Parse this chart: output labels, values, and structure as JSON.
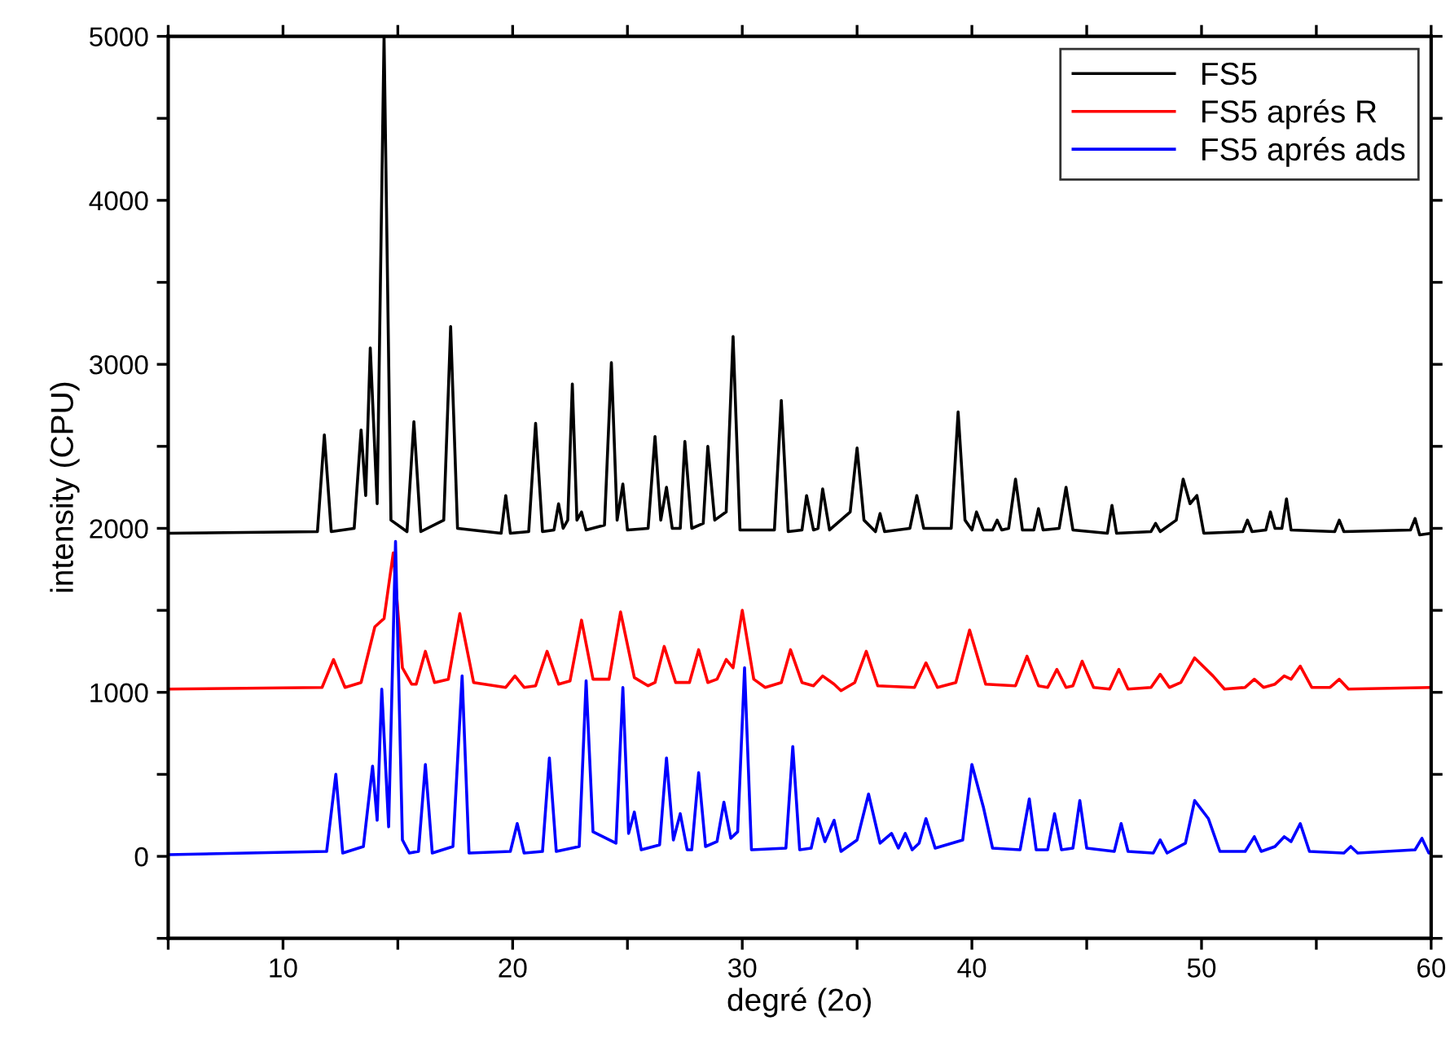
{
  "chart_data": {
    "type": "line",
    "xlabel": "degré (2o)",
    "ylabel": "intensity (CPU)",
    "xlim": [
      5,
      60
    ],
    "ylim": [
      -500,
      5000
    ],
    "xticks": [
      {
        "value": 5,
        "label": null
      },
      10,
      {
        "value": 15,
        "label": null
      },
      20,
      {
        "value": 25,
        "label": null
      },
      30,
      {
        "value": 35,
        "label": null
      },
      40,
      {
        "value": 45,
        "label": null
      },
      50,
      {
        "value": 55,
        "label": null
      },
      60
    ],
    "yticks": [
      {
        "value": -500,
        "label": null
      },
      0,
      {
        "value": 500,
        "label": null
      },
      1000,
      {
        "value": 1500,
        "label": null
      },
      2000,
      {
        "value": 2500,
        "label": null
      },
      3000,
      {
        "value": 3500,
        "label": null
      },
      4000,
      {
        "value": 4500,
        "label": null
      },
      5000
    ],
    "grid": false,
    "legend": "top right",
    "marker": "none",
    "line_style": "solid",
    "series": [
      {
        "name": "FS5",
        "color": "#000000",
        "x": [
          5,
          11.5,
          11.8,
          12.1,
          13.1,
          13.4,
          13.6,
          13.8,
          14.1,
          14.4,
          14.7,
          15.4,
          15.7,
          16.0,
          17.0,
          17.3,
          17.6,
          19.5,
          19.7,
          19.9,
          20.7,
          21.0,
          21.3,
          21.8,
          22.0,
          22.2,
          22.4,
          22.6,
          22.8,
          23.0,
          23.2,
          24.0,
          24.3,
          24.55,
          24.8,
          25.0,
          25.9,
          26.2,
          26.45,
          26.7,
          26.95,
          27.3,
          27.5,
          27.8,
          28.3,
          28.5,
          28.8,
          29.3,
          29.6,
          29.9,
          31.4,
          31.7,
          32.0,
          32.6,
          32.8,
          33.1,
          33.3,
          33.5,
          33.8,
          34.7,
          35.0,
          35.3,
          35.8,
          36.0,
          36.2,
          37.3,
          37.6,
          37.9,
          39.1,
          39.4,
          39.7,
          40.0,
          40.2,
          40.5,
          40.9,
          41.1,
          41.3,
          41.6,
          41.9,
          42.2,
          42.7,
          42.9,
          43.1,
          43.8,
          44.1,
          44.4,
          45.9,
          46.1,
          46.3,
          47.8,
          48.0,
          48.2,
          48.9,
          49.2,
          49.5,
          49.8,
          50.1,
          51.8,
          52.0,
          52.2,
          52.8,
          53.0,
          53.2,
          53.5,
          53.7,
          53.9,
          55.8,
          56.0,
          56.2,
          59.1,
          59.3,
          59.5,
          60
        ],
        "values": [
          1970,
          1980,
          2570,
          1980,
          2000,
          2600,
          2200,
          3100,
          2150,
          5000,
          2050,
          1980,
          2650,
          1980,
          2050,
          3230,
          2000,
          1970,
          2200,
          1970,
          1980,
          2640,
          1980,
          1990,
          2150,
          2000,
          2050,
          2880,
          2050,
          2100,
          1990,
          2020,
          3010,
          2050,
          2270,
          1990,
          2000,
          2560,
          2050,
          2250,
          2000,
          2000,
          2530,
          2000,
          2030,
          2500,
          2050,
          2100,
          3170,
          1990,
          1990,
          2780,
          1980,
          1990,
          2200,
          1990,
          2000,
          2240,
          1990,
          2100,
          2490,
          2050,
          1980,
          2090,
          1980,
          2000,
          2200,
          2000,
          2000,
          2710,
          2050,
          1990,
          2100,
          1990,
          1990,
          2050,
          1990,
          2000,
          2300,
          1990,
          1990,
          2120,
          1990,
          2000,
          2250,
          1990,
          1970,
          2140,
          1970,
          1980,
          2030,
          1980,
          2050,
          2300,
          2150,
          2200,
          1970,
          1980,
          2050,
          1980,
          1990,
          2100,
          2000,
          2000,
          2180,
          1990,
          1980,
          2050,
          1980,
          1990,
          2060,
          1960,
          1970
        ]
      },
      {
        "name": "FS5 aprés R",
        "color": "#ff0000",
        "x": [
          5,
          11.7,
          12.2,
          12.7,
          13.4,
          14.0,
          14.4,
          14.8,
          15.2,
          15.6,
          15.8,
          16.2,
          16.6,
          17.2,
          17.7,
          18.3,
          19.7,
          20.1,
          20.5,
          21.0,
          21.5,
          22.0,
          22.5,
          23.0,
          23.5,
          24.2,
          24.7,
          25.3,
          25.9,
          26.2,
          26.6,
          27.1,
          27.7,
          28.1,
          28.5,
          28.9,
          29.3,
          29.6,
          30.0,
          30.5,
          31.0,
          31.7,
          32.1,
          32.6,
          33.1,
          33.5,
          34.0,
          34.3,
          34.9,
          35.4,
          35.9,
          37.5,
          38.0,
          38.5,
          39.3,
          39.9,
          40.6,
          41.9,
          42.4,
          42.9,
          43.3,
          43.7,
          44.1,
          44.4,
          44.8,
          45.3,
          46.0,
          46.4,
          46.8,
          47.8,
          48.2,
          48.6,
          49.1,
          49.7,
          50.5,
          51.0,
          51.9,
          52.3,
          52.7,
          53.2,
          53.6,
          53.9,
          54.3,
          54.8,
          55.6,
          56.0,
          56.4,
          60
        ],
        "values": [
          1020,
          1030,
          1200,
          1030,
          1060,
          1400,
          1450,
          1850,
          1150,
          1050,
          1050,
          1250,
          1060,
          1080,
          1480,
          1060,
          1030,
          1100,
          1030,
          1040,
          1250,
          1050,
          1070,
          1440,
          1080,
          1080,
          1490,
          1090,
          1040,
          1060,
          1280,
          1060,
          1060,
          1260,
          1060,
          1080,
          1200,
          1150,
          1500,
          1080,
          1030,
          1060,
          1260,
          1060,
          1040,
          1100,
          1050,
          1010,
          1060,
          1250,
          1040,
          1030,
          1180,
          1030,
          1060,
          1380,
          1050,
          1040,
          1220,
          1040,
          1030,
          1140,
          1030,
          1040,
          1190,
          1030,
          1020,
          1140,
          1020,
          1030,
          1110,
          1030,
          1060,
          1210,
          1100,
          1020,
          1030,
          1080,
          1030,
          1050,
          1100,
          1080,
          1160,
          1030,
          1030,
          1080,
          1020,
          1030
        ]
      },
      {
        "name": "FS5 aprés ads",
        "color": "#0000ff",
        "x": [
          5,
          11.9,
          12.3,
          12.6,
          13.5,
          13.9,
          14.1,
          14.3,
          14.6,
          14.9,
          15.2,
          15.5,
          15.9,
          16.2,
          16.5,
          17.4,
          17.8,
          18.1,
          19.9,
          20.2,
          20.5,
          21.3,
          21.6,
          21.9,
          22.9,
          23.2,
          23.5,
          24.5,
          24.8,
          25.05,
          25.3,
          25.6,
          26.4,
          26.7,
          27.0,
          27.3,
          27.6,
          27.8,
          28.1,
          28.4,
          28.9,
          29.2,
          29.5,
          29.8,
          30.1,
          30.4,
          31.9,
          32.2,
          32.5,
          33.0,
          33.3,
          33.6,
          34.0,
          34.3,
          35.0,
          35.5,
          36.0,
          36.5,
          36.8,
          37.1,
          37.4,
          37.7,
          38.0,
          38.4,
          39.6,
          40.0,
          40.5,
          40.9,
          42.1,
          42.5,
          42.8,
          43.3,
          43.6,
          43.9,
          44.4,
          44.7,
          45.0,
          46.2,
          46.5,
          46.8,
          47.9,
          48.2,
          48.5,
          49.3,
          49.7,
          50.3,
          50.8,
          51.9,
          52.3,
          52.6,
          53.2,
          53.6,
          53.9,
          54.3,
          54.7,
          56.2,
          56.5,
          56.8,
          59.3,
          59.6,
          59.9,
          60
        ],
        "values": [
          10,
          30,
          500,
          20,
          60,
          550,
          220,
          1020,
          180,
          1920,
          100,
          20,
          30,
          560,
          20,
          60,
          1100,
          20,
          30,
          200,
          20,
          30,
          600,
          30,
          60,
          1070,
          150,
          80,
          1030,
          140,
          270,
          40,
          70,
          600,
          100,
          260,
          40,
          40,
          510,
          60,
          90,
          330,
          110,
          150,
          1150,
          40,
          50,
          670,
          40,
          50,
          230,
          90,
          220,
          30,
          100,
          380,
          80,
          140,
          50,
          140,
          40,
          80,
          230,
          50,
          100,
          560,
          300,
          50,
          40,
          350,
          40,
          40,
          260,
          40,
          50,
          340,
          50,
          30,
          200,
          30,
          20,
          100,
          20,
          80,
          340,
          230,
          30,
          30,
          120,
          30,
          60,
          120,
          90,
          200,
          30,
          20,
          60,
          20,
          40,
          110,
          20,
          20
        ]
      }
    ]
  }
}
